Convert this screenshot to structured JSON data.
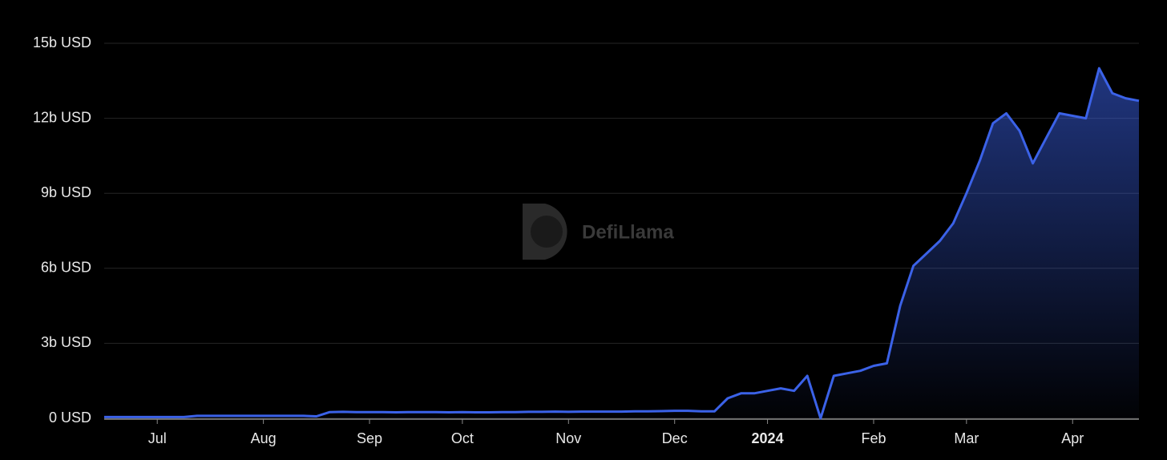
{
  "chart_data": {
    "type": "area",
    "watermark": "DefiLlama",
    "categories": [
      null,
      null,
      null,
      null,
      "Jul",
      null,
      null,
      null,
      null,
      null,
      null,
      null,
      "Aug",
      null,
      null,
      null,
      null,
      null,
      null,
      null,
      "Sep",
      null,
      null,
      null,
      null,
      null,
      null,
      "Oct",
      null,
      null,
      null,
      null,
      null,
      null,
      null,
      "Nov",
      null,
      null,
      null,
      null,
      null,
      null,
      null,
      "Dec",
      null,
      null,
      null,
      null,
      null,
      null,
      "2024",
      null,
      null,
      null,
      null,
      null,
      null,
      null,
      "Feb",
      null,
      null,
      null,
      null,
      null,
      null,
      "Mar",
      null,
      null,
      null,
      null,
      null,
      null,
      null,
      "Apr",
      null,
      null,
      null,
      null,
      null
    ],
    "values": [
      50000000.0,
      50000000.0,
      50000000.0,
      50000000.0,
      50000000.0,
      50000000.0,
      50000000.0,
      100000000.0,
      100000000.0,
      100000000.0,
      100000000.0,
      100000000.0,
      100000000.0,
      100000000.0,
      100000000.0,
      100000000.0,
      80000000.0,
      250000000.0,
      260000000.0,
      250000000.0,
      250000000.0,
      250000000.0,
      240000000.0,
      250000000.0,
      250000000.0,
      250000000.0,
      240000000.0,
      250000000.0,
      240000000.0,
      240000000.0,
      250000000.0,
      250000000.0,
      260000000.0,
      260000000.0,
      270000000.0,
      260000000.0,
      270000000.0,
      270000000.0,
      270000000.0,
      270000000.0,
      280000000.0,
      280000000.0,
      290000000.0,
      300000000.0,
      300000000.0,
      280000000.0,
      280000000.0,
      800000000.0,
      1000000000.0,
      1000000000.0,
      1100000000.0,
      1200000000.0,
      1100000000.0,
      1700000000.0,
      0,
      1700000000.0,
      1800000000.0,
      1900000000.0,
      2100000000.0,
      2200000000.0,
      4500000000.0,
      6100000000.0,
      6600000000.0,
      7100000000.0,
      7800000000.0,
      9000000000.0,
      10300000000.0,
      11800000000.0,
      12200000000.0,
      11500000000.0,
      10200000000.0,
      11200000000.0,
      12200000000.0,
      12100000000.0,
      12000000000.0,
      14000000000.0,
      13000000000.0,
      12800000000.0,
      12700000000.0
    ],
    "color": "#3b62e8",
    "ylim": [
      0,
      15000000000
    ],
    "yticks": [
      {
        "value": 0,
        "label": "0 USD"
      },
      {
        "value": 3000000000,
        "label": "3b USD"
      },
      {
        "value": 6000000000,
        "label": "6b USD"
      },
      {
        "value": 9000000000,
        "label": "9b USD"
      },
      {
        "value": 12000000000,
        "label": "12b USD"
      },
      {
        "value": 15000000000,
        "label": "15b USD"
      }
    ],
    "grid": true
  }
}
